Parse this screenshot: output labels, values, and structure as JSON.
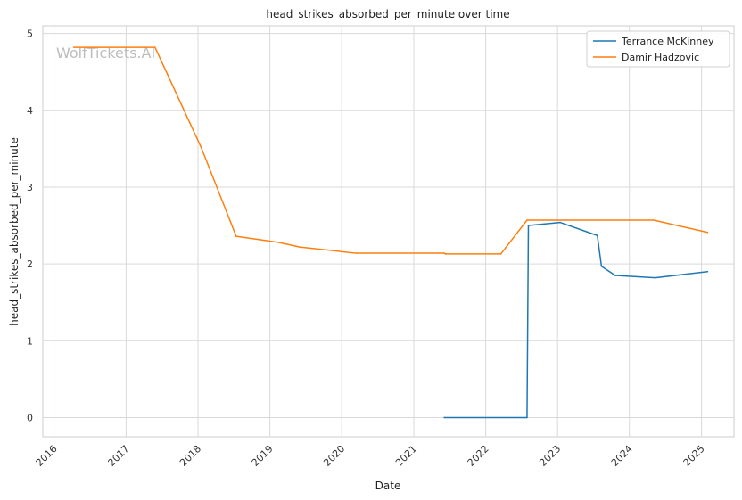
{
  "chart_data": {
    "type": "line",
    "title": "head_strikes_absorbed_per_minute over time",
    "xlabel": "Date",
    "ylabel": "head_strikes_absorbed_per_minute",
    "watermark": "WolfTickets.AI",
    "x_ticks": [
      "2016",
      "2017",
      "2018",
      "2019",
      "2020",
      "2021",
      "2022",
      "2023",
      "2024",
      "2025"
    ],
    "y_ticks": [
      "0",
      "1",
      "2",
      "3",
      "4",
      "5"
    ],
    "xlim": [
      "2015-11-05",
      "2025-06-15"
    ],
    "ylim": [
      -0.25,
      5.1
    ],
    "grid": true,
    "legend_position": "top-right",
    "series": [
      {
        "name": "Terrance McKinney",
        "color": "#1f77b4",
        "points": [
          {
            "x": "2021-06-05",
            "y": 0.0
          },
          {
            "x": "2022-07-30",
            "y": 0.0
          },
          {
            "x": "2022-08-06",
            "y": 2.5
          },
          {
            "x": "2023-01-14",
            "y": 2.54
          },
          {
            "x": "2023-07-22",
            "y": 2.37
          },
          {
            "x": "2023-08-12",
            "y": 1.97
          },
          {
            "x": "2023-10-21",
            "y": 1.85
          },
          {
            "x": "2024-05-11",
            "y": 1.82
          },
          {
            "x": "2025-02-01",
            "y": 1.9
          }
        ]
      },
      {
        "name": "Damir Hadzovic",
        "color": "#ff7f0e",
        "points": [
          {
            "x": "2016-04-10",
            "y": 4.82
          },
          {
            "x": "2017-05-28",
            "y": 4.82
          },
          {
            "x": "2018-01-20",
            "y": 3.5
          },
          {
            "x": "2018-07-14",
            "y": 2.36
          },
          {
            "x": "2019-02-17",
            "y": 2.28
          },
          {
            "x": "2019-06-01",
            "y": 2.22
          },
          {
            "x": "2020-03-14",
            "y": 2.14
          },
          {
            "x": "2021-06-05",
            "y": 2.14
          },
          {
            "x": "2021-06-12",
            "y": 2.13
          },
          {
            "x": "2022-03-19",
            "y": 2.13
          },
          {
            "x": "2022-07-30",
            "y": 2.57
          },
          {
            "x": "2024-05-04",
            "y": 2.57
          },
          {
            "x": "2025-02-01",
            "y": 2.41
          }
        ]
      }
    ]
  }
}
